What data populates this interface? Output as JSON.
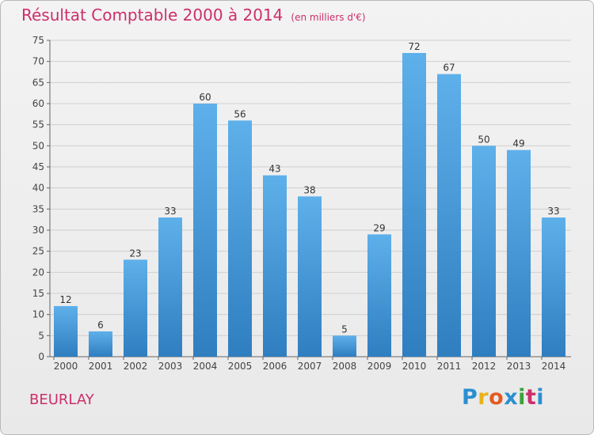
{
  "title": "Résultat Comptable 2000 à 2014",
  "subtitle": "(en milliers d'€)",
  "commune": "BEURLAY",
  "logo": {
    "letters": [
      "P",
      "r",
      "o",
      "x",
      "i",
      "t",
      "i"
    ],
    "colors": [
      "#2a8fd0",
      "#e8b21a",
      "#e35a23",
      "#2a8fd0",
      "#3aa33a",
      "#cc2f6b",
      "#2a8fd0"
    ]
  },
  "colors": {
    "bar_light": "#5eb0ea",
    "bar_dark": "#2f7ec0",
    "text": "#cc2f6b",
    "axis_text": "#444444",
    "grid": "#cfcfcf"
  },
  "chart_data": {
    "type": "bar",
    "categories": [
      "2000",
      "2001",
      "2002",
      "2003",
      "2004",
      "2005",
      "2006",
      "2007",
      "2008",
      "2009",
      "2010",
      "2011",
      "2012",
      "2013",
      "2014"
    ],
    "values": [
      12,
      6,
      23,
      33,
      60,
      56,
      43,
      38,
      5,
      29,
      72,
      67,
      50,
      49,
      33
    ],
    "ylim": [
      0,
      75
    ],
    "yticks": [
      0,
      5,
      10,
      15,
      20,
      25,
      30,
      35,
      40,
      45,
      50,
      55,
      60,
      65,
      70,
      75
    ],
    "grid": true,
    "data_labels": true
  }
}
